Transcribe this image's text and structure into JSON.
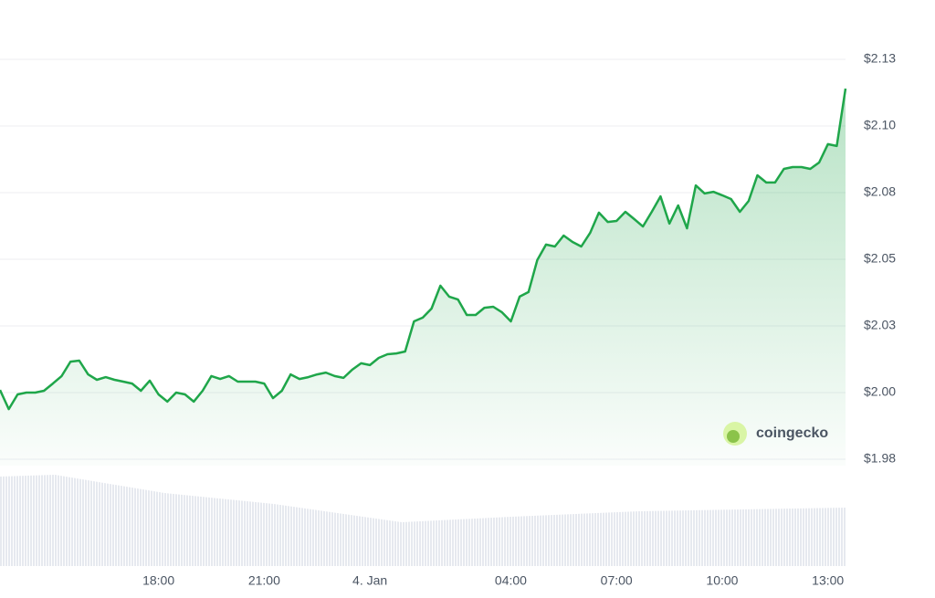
{
  "chart_data": {
    "type": "line",
    "color": "#1fa64a",
    "watermark": "coingecko",
    "xlim": [
      13.5,
      37.5
    ],
    "xticks": [
      {
        "value": 18,
        "label": "18:00"
      },
      {
        "value": 21,
        "label": "21:00"
      },
      {
        "value": 24,
        "label": "4. Jan"
      },
      {
        "value": 28,
        "label": "04:00"
      },
      {
        "value": 31,
        "label": "07:00"
      },
      {
        "value": 34,
        "label": "10:00"
      },
      {
        "value": 37,
        "label": "13:00"
      }
    ],
    "ylim": [
      1.975,
      2.125
    ],
    "yticks": [
      {
        "value": 1.975,
        "label": "$1.98"
      },
      {
        "value": 2.0,
        "label": "$2.00"
      },
      {
        "value": 2.025,
        "label": "$2.03"
      },
      {
        "value": 2.05,
        "label": "$2.05"
      },
      {
        "value": 2.075,
        "label": "$2.08"
      },
      {
        "value": 2.1,
        "label": "$2.10"
      },
      {
        "value": 2.125,
        "label": "$2.13"
      }
    ],
    "grid": true,
    "x": [
      13.5,
      13.75,
      14,
      14.25,
      14.5,
      14.75,
      15,
      15.25,
      15.5,
      15.75,
      16,
      16.25,
      16.5,
      16.75,
      17,
      17.25,
      17.5,
      17.75,
      18,
      18.25,
      18.5,
      18.75,
      19,
      19.25,
      19.5,
      19.75,
      20,
      20.25,
      20.5,
      20.75,
      21,
      21.25,
      21.5,
      21.75,
      22,
      22.25,
      22.5,
      22.75,
      23,
      23.25,
      23.5,
      23.75,
      24,
      24.25,
      24.5,
      24.75,
      25,
      25.25,
      25.5,
      25.75,
      26,
      26.25,
      26.5,
      26.75,
      27,
      27.25,
      27.5,
      27.75,
      28,
      28.25,
      28.5,
      28.75,
      29,
      29.25,
      29.5,
      29.75,
      30,
      30.25,
      30.5,
      30.75,
      31,
      31.25,
      31.5,
      31.75,
      32,
      32.25,
      32.5,
      32.75,
      33,
      33.25,
      33.5,
      33.75,
      34,
      34.25,
      34.5,
      34.75,
      35,
      35.25,
      35.5,
      35.75,
      36,
      36.25,
      36.5,
      36.75,
      37,
      37.25,
      37.5
    ],
    "values": [
      2.001,
      1.9938,
      1.9993,
      2.0,
      2.0,
      2.0007,
      2.0034,
      2.0062,
      2.0116,
      2.012,
      2.0068,
      2.0048,
      2.0058,
      2.0048,
      2.0041,
      2.0034,
      2.0007,
      2.0045,
      1.9993,
      1.9966,
      2.0,
      1.9993,
      1.9966,
      2.0007,
      2.0062,
      2.0051,
      2.0062,
      2.0041,
      2.0041,
      2.0041,
      2.0034,
      1.9979,
      2.0007,
      2.0068,
      2.0051,
      2.0058,
      2.0068,
      2.0075,
      2.0062,
      2.0055,
      2.0086,
      2.011,
      2.0103,
      2.013,
      2.0144,
      2.0147,
      2.0154,
      2.0267,
      2.0281,
      2.0315,
      2.0401,
      2.036,
      2.0349,
      2.0291,
      2.0291,
      2.0318,
      2.0322,
      2.0301,
      2.0267,
      2.036,
      2.0377,
      2.0497,
      2.0555,
      2.0548,
      2.0589,
      2.0565,
      2.0548,
      2.0599,
      2.0675,
      2.064,
      2.0644,
      2.0678,
      2.0651,
      2.0623,
      2.0678,
      2.0736,
      2.0634,
      2.0702,
      2.0616,
      2.0777,
      2.0747,
      2.0753,
      2.074,
      2.0726,
      2.0678,
      2.0719,
      2.0815,
      2.0788,
      2.0788,
      2.0839,
      2.0846,
      2.0846,
      2.0839,
      2.0863,
      2.0932,
      2.0925,
      2.114
    ]
  }
}
